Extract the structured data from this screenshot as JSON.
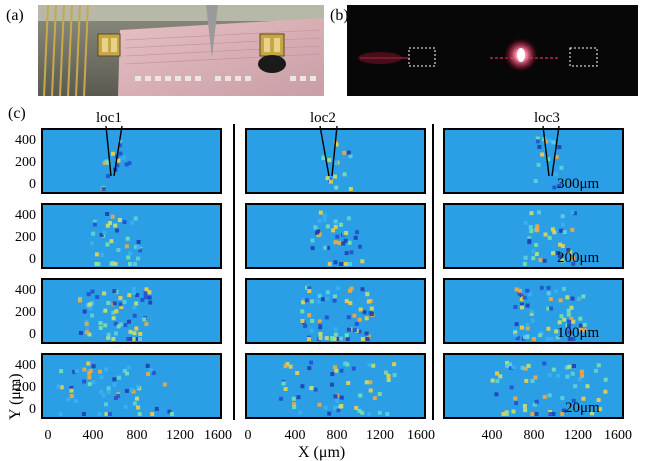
{
  "panel_labels": {
    "a": "(a)",
    "b": "(b)",
    "c": "(c)"
  },
  "column_labels": [
    "loc1",
    "loc2",
    "loc3"
  ],
  "row_labels": [
    "300μm",
    "200μm",
    "100μm",
    "20μm"
  ],
  "axes": {
    "ylabel": "Y (μm)",
    "xlabel": "X (μm)",
    "y_ticks": [
      "400",
      "200",
      "0"
    ],
    "x_ticks_col1": [
      "0",
      "400",
      "800",
      "1200",
      "1600"
    ],
    "x_ticks_col2": [
      "0",
      "400",
      "800",
      "1200",
      "1600"
    ],
    "x_ticks_col3": [
      "400",
      "800",
      "1200",
      "1600"
    ]
  },
  "colors": {
    "heatmap_background": "#2b9fe6",
    "photo_dark": "#0a0a0a",
    "laser_glow": "#ff4f7a",
    "chip_pink": "#d9a8b0"
  }
}
